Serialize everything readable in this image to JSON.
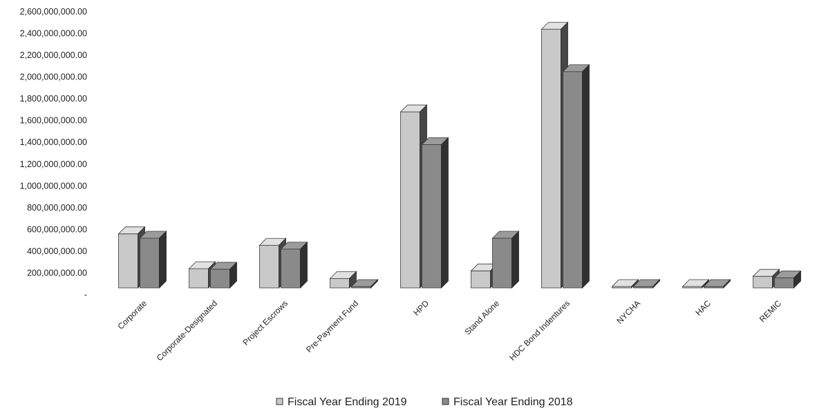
{
  "chart_data": {
    "type": "bar",
    "title": "",
    "xlabel": "",
    "ylabel": "",
    "ylim": [
      0,
      2600000000
    ],
    "y_ticks": [
      "-",
      "200,000,000.00",
      "400,000,000.00",
      "600,000,000.00",
      "800,000,000.00",
      "1,000,000,000.00",
      "1,200,000,000.00",
      "1,400,000,000.00",
      "1,600,000,000.00",
      "1,800,000,000.00",
      "2,000,000,000.00",
      "2,200,000,000.00",
      "2,400,000,000.00",
      "2,600,000,000.00"
    ],
    "categories": [
      "Corporate",
      "Corporate-Designated",
      "Project Escrows",
      "Pre-Payment Fund",
      "HPD",
      "Stand Alone",
      "HDC Bond Indentures",
      "NYCHA",
      "HAC",
      "REMIC"
    ],
    "series": [
      {
        "name": "Fiscal Year Ending 2019",
        "color": "#c9c9c9",
        "values": [
          560000000,
          240000000,
          455000000,
          150000000,
          1680000000,
          220000000,
          2440000000,
          50000000,
          20000000,
          170000000
        ]
      },
      {
        "name": "Fiscal Year Ending 2018",
        "color": "#8a8a8a",
        "values": [
          520000000,
          235000000,
          420000000,
          50000000,
          1380000000,
          520000000,
          2050000000,
          45000000,
          20000000,
          155000000
        ]
      }
    ],
    "grid": false,
    "legend_position": "bottom"
  }
}
